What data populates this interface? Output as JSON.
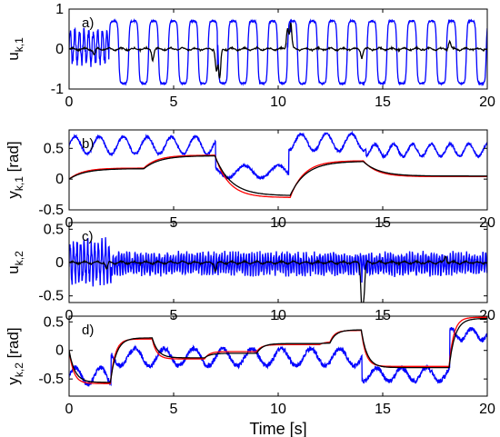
{
  "chart_data": [
    {
      "type": "line",
      "panel_label": "a)",
      "ylabel": "u",
      "ylabel_sub": "k,1",
      "xlim": [
        0,
        20
      ],
      "ylim": [
        -1,
        1
      ],
      "xticks": [
        0,
        5,
        10,
        15,
        20
      ],
      "yticks": [
        -1,
        0,
        1
      ],
      "series": [
        {
          "color": "#0000ff",
          "kind": "oscillation",
          "segments": [
            {
              "from": 0.0,
              "to": 1.9,
              "period": 0.22,
              "amp": 0.38,
              "offset": 0.05,
              "sharp": 1.0,
              "noise": 0.12
            },
            {
              "from": 1.9,
              "to": 20.0,
              "period": 0.95,
              "amp": 0.78,
              "offset": -0.08,
              "sharp": 3.2,
              "noise": 0.02
            }
          ],
          "points": [
            [
              7.1,
              -0.45
            ],
            [
              10.45,
              0.15
            ],
            [
              10.6,
              0.42
            ]
          ]
        },
        {
          "color": "#000000",
          "kind": "control",
          "base": 0.0,
          "wiggle": 0.05,
          "events": [
            [
              1.2,
              -0.15
            ],
            [
              4.0,
              -0.25
            ],
            [
              7.05,
              -0.55
            ],
            [
              7.2,
              -0.75
            ],
            [
              10.45,
              0.55
            ],
            [
              10.6,
              0.65
            ],
            [
              14.0,
              -0.2
            ],
            [
              18.2,
              0.2
            ]
          ]
        }
      ]
    },
    {
      "type": "line",
      "panel_label": "b)",
      "ylabel": "y",
      "ylabel_sub": "k,1",
      "ylabel_unit": "[rad]",
      "xlim": [
        0,
        20
      ],
      "ylim": [
        -0.5,
        0.8
      ],
      "xticks": [
        0,
        5,
        10,
        15,
        20
      ],
      "yticks": [
        -0.5,
        0,
        0.5
      ],
      "series": [
        {
          "color": "#0000ff",
          "kind": "oscillation",
          "segments": [
            {
              "from": 0.0,
              "to": 7.0,
              "period": 1.15,
              "amp": 0.14,
              "offset": 0.55,
              "sharp": 1.0,
              "noise": 0.02
            },
            {
              "from": 7.0,
              "to": 10.5,
              "period": 1.6,
              "amp": 0.1,
              "offset": 0.12,
              "sharp": 1.0,
              "noise": 0.02
            },
            {
              "from": 10.5,
              "to": 14.2,
              "period": 1.2,
              "amp": 0.14,
              "offset": 0.6,
              "sharp": 1.0,
              "noise": 0.02
            },
            {
              "from": 14.2,
              "to": 20.0,
              "period": 0.9,
              "amp": 0.1,
              "offset": 0.47,
              "sharp": 1.0,
              "noise": 0.02
            }
          ]
        },
        {
          "color": "#ff0000",
          "kind": "steps",
          "y0": 0.0,
          "tau": 0.65,
          "steps": [
            [
              0.0,
              0.18
            ],
            [
              3.6,
              0.39
            ],
            [
              7.0,
              -0.3
            ],
            [
              10.6,
              0.3
            ],
            [
              14.1,
              0.04
            ]
          ]
        },
        {
          "color": "#000000",
          "kind": "steps",
          "y0": 0.0,
          "tau": 0.75,
          "steps": [
            [
              0.0,
              0.17
            ],
            [
              3.6,
              0.38
            ],
            [
              7.0,
              -0.27
            ],
            [
              10.6,
              0.29
            ],
            [
              14.1,
              0.05
            ]
          ]
        }
      ]
    },
    {
      "type": "line",
      "panel_label": "c)",
      "ylabel": "u",
      "ylabel_sub": "k,2",
      "xlim": [
        0,
        20
      ],
      "ylim": [
        -0.6,
        0.6
      ],
      "xticks": [
        0,
        5,
        10,
        15,
        20
      ],
      "yticks": [
        -0.5,
        0,
        0.5
      ],
      "series": [
        {
          "color": "#0000ff",
          "kind": "oscillation",
          "segments": [
            {
              "from": 0.0,
              "to": 2.0,
              "period": 0.17,
              "amp": 0.28,
              "offset": 0.0,
              "sharp": 1.0,
              "noise": 0.1
            },
            {
              "from": 2.0,
              "to": 20.0,
              "period": 0.13,
              "amp": 0.14,
              "offset": -0.02,
              "sharp": 1.0,
              "noise": 0.06
            }
          ],
          "points": [
            [
              14.0,
              -0.3
            ]
          ]
        },
        {
          "color": "#000000",
          "kind": "control",
          "base": 0.0,
          "wiggle": 0.03,
          "events": [
            [
              1.8,
              -0.1
            ],
            [
              7.0,
              -0.12
            ],
            [
              14.0,
              -0.62
            ],
            [
              14.1,
              -0.45
            ],
            [
              18.0,
              0.1
            ]
          ]
        }
      ]
    },
    {
      "type": "line",
      "panel_label": "d)",
      "ylabel": "y",
      "ylabel_sub": "k,2",
      "ylabel_unit": "[rad]",
      "xlim": [
        0,
        20
      ],
      "ylim": [
        -0.8,
        0.6
      ],
      "xticks": [
        0,
        5,
        10,
        15,
        20
      ],
      "yticks": [
        -0.5,
        0,
        0.5
      ],
      "xlabel": "Time [s]",
      "series": [
        {
          "color": "#0000ff",
          "kind": "oscillation",
          "segments": [
            {
              "from": 0.0,
              "to": 2.0,
              "period": 1.2,
              "amp": 0.15,
              "offset": -0.45,
              "sharp": 1.0,
              "noise": 0.04
            },
            {
              "from": 2.0,
              "to": 14.0,
              "period": 1.4,
              "amp": 0.15,
              "offset": -0.12,
              "sharp": 1.0,
              "noise": 0.04
            },
            {
              "from": 14.0,
              "to": 18.2,
              "period": 1.2,
              "amp": 0.12,
              "offset": -0.42,
              "sharp": 1.0,
              "noise": 0.04
            },
            {
              "from": 18.2,
              "to": 20.0,
              "period": 1.0,
              "amp": 0.1,
              "offset": 0.28,
              "sharp": 1.0,
              "noise": 0.04
            }
          ]
        },
        {
          "color": "#ff0000",
          "kind": "steps",
          "y0": 0.0,
          "tau": 0.22,
          "steps": [
            [
              0.0,
              -0.58
            ],
            [
              2.0,
              0.2
            ],
            [
              4.0,
              -0.15
            ],
            [
              6.5,
              -0.02
            ],
            [
              9.0,
              0.1
            ],
            [
              12.0,
              0.15
            ],
            [
              12.5,
              0.35
            ],
            [
              14.0,
              -0.28
            ],
            [
              18.2,
              0.58
            ]
          ]
        },
        {
          "color": "#000000",
          "kind": "steps",
          "y0": 0.0,
          "tau": 0.28,
          "steps": [
            [
              0.0,
              -0.56
            ],
            [
              2.0,
              0.22
            ],
            [
              4.0,
              -0.13
            ],
            [
              6.5,
              -0.05
            ],
            [
              9.0,
              0.12
            ],
            [
              12.0,
              0.13
            ],
            [
              12.5,
              0.36
            ],
            [
              14.0,
              -0.3
            ],
            [
              18.2,
              0.56
            ]
          ]
        }
      ]
    }
  ]
}
